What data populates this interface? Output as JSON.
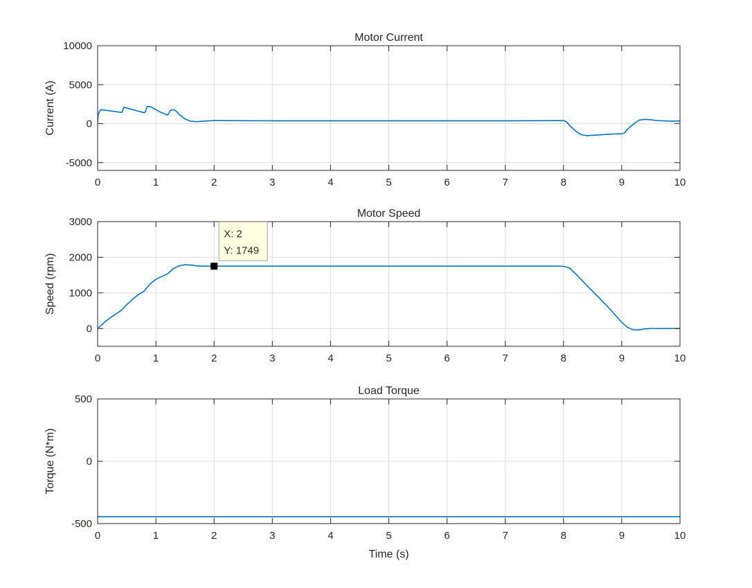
{
  "figure": {
    "line_color": "#0072BD",
    "grid_color": "#dcdcdc",
    "axes_color": "#262626",
    "background": "#ffffff"
  },
  "chart_data": [
    {
      "type": "line",
      "title": "Motor Current",
      "xlabel": "",
      "ylabel": "Current (A)",
      "xlim": [
        0,
        10
      ],
      "ylim": [
        -6000,
        10000
      ],
      "xticks": [
        0,
        1,
        2,
        3,
        4,
        5,
        6,
        7,
        8,
        9,
        10
      ],
      "yticks": [
        -5000,
        0,
        5000,
        10000
      ],
      "grid": true,
      "series": [
        {
          "x": [
            0,
            0.01,
            0.05,
            0.1,
            0.2,
            0.3,
            0.4,
            0.42,
            0.45,
            0.5,
            0.6,
            0.7,
            0.8,
            0.82,
            0.85,
            0.9,
            0.95,
            1.0,
            1.1,
            1.2,
            1.22,
            1.25,
            1.3,
            1.35,
            1.4,
            1.5,
            1.6,
            1.7,
            1.8,
            1.9,
            2.0,
            2.5,
            3,
            4,
            5,
            6,
            7,
            7.9,
            8.0,
            8.05,
            8.1,
            8.2,
            8.3,
            8.4,
            8.6,
            8.8,
            9.0,
            9.05,
            9.1,
            9.2,
            9.3,
            9.4,
            9.5,
            9.6,
            9.8,
            10
          ],
          "y": [
            200,
            1200,
            1800,
            1750,
            1650,
            1550,
            1450,
            1450,
            2100,
            2000,
            1800,
            1600,
            1400,
            1500,
            2200,
            2200,
            2000,
            1800,
            1400,
            1100,
            1300,
            1700,
            1800,
            1600,
            1200,
            600,
            300,
            250,
            300,
            350,
            400,
            370,
            360,
            360,
            360,
            360,
            360,
            380,
            400,
            250,
            -200,
            -900,
            -1400,
            -1550,
            -1450,
            -1350,
            -1300,
            -1200,
            -700,
            -50,
            450,
            550,
            500,
            400,
            330,
            330
          ]
        }
      ]
    },
    {
      "type": "line",
      "title": "Motor Speed",
      "xlabel": "",
      "ylabel": "Speed (rpm)",
      "xlim": [
        0,
        10
      ],
      "ylim": [
        -500,
        3000
      ],
      "xticks": [
        0,
        1,
        2,
        3,
        4,
        5,
        6,
        7,
        8,
        9,
        10
      ],
      "yticks": [
        0,
        1000,
        2000,
        3000
      ],
      "grid": true,
      "series": [
        {
          "x": [
            0,
            0.1,
            0.2,
            0.3,
            0.4,
            0.5,
            0.6,
            0.7,
            0.8,
            0.9,
            1.0,
            1.1,
            1.2,
            1.3,
            1.4,
            1.5,
            1.6,
            1.7,
            1.8,
            1.9,
            2.0,
            3,
            4,
            5,
            6,
            7,
            7.9,
            8.0,
            8.1,
            8.2,
            8.4,
            8.6,
            8.8,
            9.0,
            9.1,
            9.2,
            9.3,
            9.4,
            9.5,
            9.7,
            10
          ],
          "y": [
            0,
            150,
            280,
            390,
            500,
            670,
            820,
            950,
            1050,
            1250,
            1380,
            1460,
            1530,
            1680,
            1760,
            1790,
            1780,
            1760,
            1750,
            1750,
            1749,
            1749,
            1749,
            1749,
            1749,
            1749,
            1749,
            1745,
            1700,
            1550,
            1210,
            880,
            540,
            170,
            30,
            -40,
            -40,
            -10,
            0,
            0,
            0
          ]
        }
      ],
      "datatip": {
        "x": 2,
        "y": 1749,
        "line1": "X: 2",
        "line2": "Y: 1749"
      }
    },
    {
      "type": "line",
      "title": "Load Torque",
      "xlabel": "Time (s)",
      "ylabel": "Torque (N*m)",
      "xlim": [
        0,
        10
      ],
      "ylim": [
        -500,
        500
      ],
      "xticks": [
        0,
        1,
        2,
        3,
        4,
        5,
        6,
        7,
        8,
        9,
        10
      ],
      "yticks": [
        -500,
        0,
        500
      ],
      "grid": true,
      "series": [
        {
          "x": [
            0,
            10
          ],
          "y": [
            -445,
            -445
          ]
        }
      ]
    }
  ]
}
